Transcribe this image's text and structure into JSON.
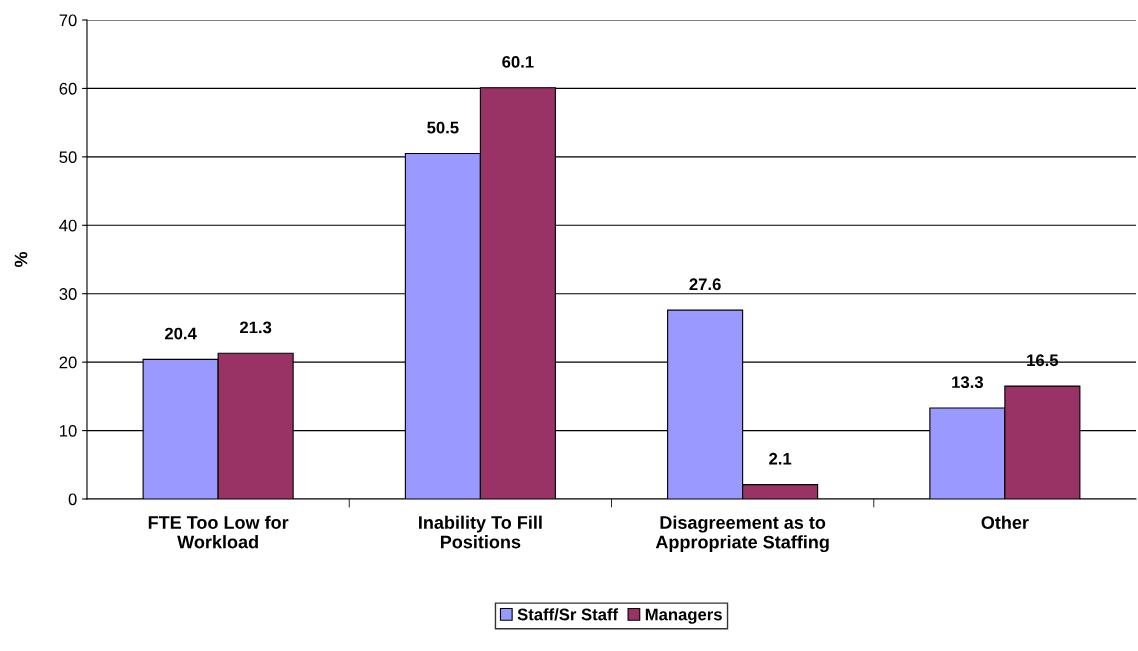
{
  "chart_data": {
    "type": "bar",
    "ylabel": "%",
    "categories": [
      "FTE Too Low for\nWorkload",
      "Inability To Fill\nPositions",
      "Disagreement as to\nAppropriate Staffing",
      "Other"
    ],
    "series": [
      {
        "name": "Staff/Sr Staff",
        "color": "#9999ff",
        "values": [
          20.4,
          50.5,
          27.6,
          13.3
        ]
      },
      {
        "name": "Managers",
        "color": "#993366",
        "values": [
          21.3,
          60.1,
          2.1,
          16.5
        ]
      }
    ],
    "ylim": [
      0,
      70
    ],
    "yticks": [
      0,
      10,
      20,
      30,
      40,
      50,
      60,
      70
    ],
    "grid": "y",
    "legend": "bottom",
    "data_labels": true
  }
}
